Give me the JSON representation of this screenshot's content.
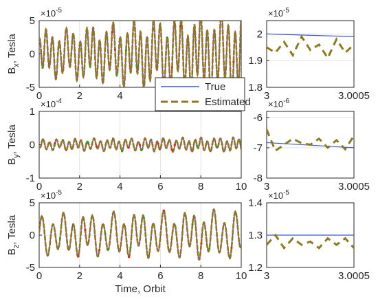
{
  "chart_data": [
    {
      "type": "line",
      "panel": "main-bx",
      "ylabel_main": "B",
      "ylabel_sub": "x",
      "ylabel_rest": ", Tesla",
      "multiplier_base": "×10",
      "multiplier_exp": "-5",
      "xlim": [
        0,
        10
      ],
      "ylim": [
        -5,
        5
      ],
      "xticks": [
        "0",
        "2",
        "4"
      ],
      "yticks": [
        "5",
        "0",
        "-5"
      ],
      "amplitude": 3.6,
      "envelope_growth": 0.9,
      "freq": [
        3.0,
        0.4
      ],
      "seed": 3,
      "series": [
        {
          "name": "True",
          "color": "#8a2be2"
        },
        {
          "name": "Estimated",
          "color": "#8b7a1f"
        }
      ]
    },
    {
      "type": "line",
      "panel": "main-by",
      "ylabel_main": "B",
      "ylabel_sub": "y",
      "ylabel_rest": ", Tesla",
      "multiplier_base": "×10",
      "multiplier_exp": "-4",
      "xlim": [
        0,
        10
      ],
      "ylim": [
        -1,
        1
      ],
      "xticks": [
        "0",
        "2",
        "4",
        "6",
        "8",
        "10"
      ],
      "yticks": [
        "1",
        "0",
        "-1"
      ],
      "amplitude": 0.18,
      "envelope_growth": 0.3,
      "freq": [
        3.2,
        0.5
      ],
      "seed": 7,
      "series": [
        {
          "name": "True",
          "color": "#8a2be2"
        },
        {
          "name": "Estimated",
          "color": "#8b7a1f"
        }
      ]
    },
    {
      "type": "line",
      "panel": "main-bz",
      "ylabel_main": "B",
      "ylabel_sub": "z",
      "ylabel_rest": ", Tesla",
      "multiplier_base": "×10",
      "multiplier_exp": "-5",
      "xlim": [
        0,
        10
      ],
      "ylim": [
        -5,
        5
      ],
      "xticks": [
        "0",
        "2",
        "4",
        "6",
        "8",
        "10"
      ],
      "yticks": [
        "5",
        "0",
        "-5"
      ],
      "xlabel": "Time, Orbit",
      "amplitude": 3.4,
      "envelope_growth": 0.2,
      "freq": [
        2.0,
        0.35
      ],
      "seed": 11,
      "series": [
        {
          "name": "True",
          "color": "#8a2be2"
        },
        {
          "name": "Estimated",
          "color": "#8b7a1f"
        }
      ]
    },
    {
      "type": "line",
      "panel": "zoom-bx",
      "multiplier_base": "×10",
      "multiplier_exp": "-5",
      "xlim": [
        3,
        3.0005
      ],
      "ylim": [
        1.8,
        2.05
      ],
      "xticks": [
        "3",
        "3.0005"
      ],
      "yticks": [
        "2",
        "1.9",
        "1.8"
      ],
      "true_line": [
        2.0,
        1.99
      ],
      "estimated": [
        1.95,
        1.93,
        1.97,
        1.92,
        1.99,
        1.94,
        1.96,
        1.91,
        1.98,
        1.93,
        1.96
      ],
      "series": [
        {
          "name": "True",
          "color": "#3a57c8"
        },
        {
          "name": "Estimated",
          "color": "#8b7a1f"
        }
      ]
    },
    {
      "type": "line",
      "panel": "zoom-by",
      "multiplier_base": "×10",
      "multiplier_exp": "-6",
      "xlim": [
        3,
        3.0005
      ],
      "ylim": [
        -8,
        -5.8
      ],
      "xticks": [
        "3",
        "3.0005"
      ],
      "yticks": [
        "-6",
        "-7",
        "-8"
      ],
      "true_line": [
        -6.83,
        -7.0
      ],
      "estimated": [
        -6.4,
        -7.1,
        -6.9,
        -6.7,
        -6.85,
        -6.9,
        -6.7,
        -7.0,
        -6.75,
        -7.05,
        -6.6
      ],
      "series": [
        {
          "name": "True",
          "color": "#3a57c8"
        },
        {
          "name": "Estimated",
          "color": "#8b7a1f"
        }
      ]
    },
    {
      "type": "line",
      "panel": "zoom-bz",
      "multiplier_base": "×10",
      "multiplier_exp": "-5",
      "xlim": [
        3,
        3.0005
      ],
      "ylim": [
        1.2,
        1.4
      ],
      "xticks": [
        "3",
        "3.0005"
      ],
      "yticks": [
        "1.4",
        "1.3",
        "1.2"
      ],
      "true_line": [
        1.3,
        1.3
      ],
      "estimated": [
        1.27,
        1.3,
        1.26,
        1.29,
        1.27,
        1.28,
        1.26,
        1.29,
        1.27,
        1.29,
        1.26
      ],
      "series": [
        {
          "name": "True",
          "color": "#3a57c8"
        },
        {
          "name": "Estimated",
          "color": "#8b7a1f"
        }
      ]
    }
  ],
  "legend": {
    "entries": [
      {
        "label": "True",
        "color": "#3a57c8",
        "style": "solid"
      },
      {
        "label": "Estimated",
        "color": "#8b7a1f",
        "style": "dashed"
      }
    ],
    "placement": "right of top panel"
  }
}
